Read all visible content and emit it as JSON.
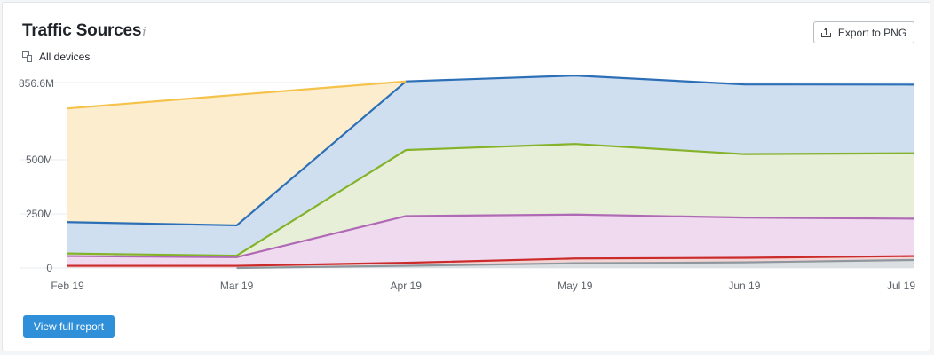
{
  "header": {
    "title": "Traffic Sources",
    "info_icon": "info-icon",
    "info_glyph": "i"
  },
  "filter": {
    "devices_label": "All devices",
    "icon": "devices-icon"
  },
  "toolbar": {
    "export_label": "Export to PNG",
    "export_icon": "upload-icon"
  },
  "footer": {
    "report_label": "View full report"
  },
  "colors": {
    "accent": "#2f8fd9"
  },
  "chart_data": {
    "type": "area",
    "stacked": true,
    "title": "Traffic Sources",
    "categories": [
      "Feb 19",
      "Mar 19",
      "Apr 19",
      "May 19",
      "Jun 19",
      "Jul 19"
    ],
    "y_ticks": [
      {
        "value": 0,
        "label": "0"
      },
      {
        "value": 250000000,
        "label": "250M"
      },
      {
        "value": 500000000,
        "label": "500M"
      },
      {
        "value": 856600000,
        "label": "856.6M"
      }
    ],
    "ylim": [
      0,
      856600000
    ],
    "grid": true,
    "series": [
      {
        "color": "#8f979e",
        "fill": "#dcdfe2",
        "values": [
          0,
          0,
          10000000,
          22000000,
          26000000,
          37000000
        ]
      },
      {
        "color": "#cc2b2b",
        "fill": "#f3d4d4",
        "values": [
          10000000,
          10000000,
          14000000,
          22000000,
          21000000,
          18000000
        ]
      },
      {
        "color": "#b069b5",
        "fill": "#efdaf0",
        "values": [
          45000000,
          40000000,
          216000000,
          203000000,
          186000000,
          173000000
        ]
      },
      {
        "color": "#84b229",
        "fill": "#e7efd8",
        "values": [
          12000000,
          7000000,
          305000000,
          326000000,
          293000000,
          302000000
        ]
      },
      {
        "color": "#2c6fb7",
        "fill": "#cfdff0",
        "values": [
          145000000,
          140000000,
          317000000,
          316000000,
          322000000,
          317000000
        ]
      },
      {
        "color": "#f5c24a",
        "fill": "#fbedcd",
        "values": [
          525000000,
          603000000,
          0,
          0,
          0,
          0
        ]
      }
    ]
  }
}
